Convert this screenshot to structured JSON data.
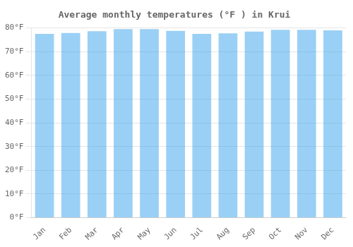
{
  "chart_data": {
    "type": "bar",
    "title": "Average monthly temperatures (°F ) in Krui",
    "categories": [
      "Jan",
      "Feb",
      "Mar",
      "Apr",
      "May",
      "Jun",
      "Jul",
      "Aug",
      "Sep",
      "Oct",
      "Nov",
      "Dec"
    ],
    "values": [
      77.5,
      77.9,
      78.6,
      79.5,
      79.5,
      78.8,
      77.5,
      77.7,
      78.5,
      79.2,
      79.2,
      79.0
    ],
    "ylim": [
      0,
      80
    ],
    "yticks": [
      {
        "value": 0,
        "label": "0°F"
      },
      {
        "value": 10,
        "label": "10°F"
      },
      {
        "value": 20,
        "label": "20°F"
      },
      {
        "value": 30,
        "label": "30°F"
      },
      {
        "value": 40,
        "label": "40°F"
      },
      {
        "value": 50,
        "label": "50°F"
      },
      {
        "value": 60,
        "label": "60°F"
      },
      {
        "value": 70,
        "label": "70°F"
      },
      {
        "value": 80,
        "label": "80°F"
      }
    ],
    "grid": true
  }
}
